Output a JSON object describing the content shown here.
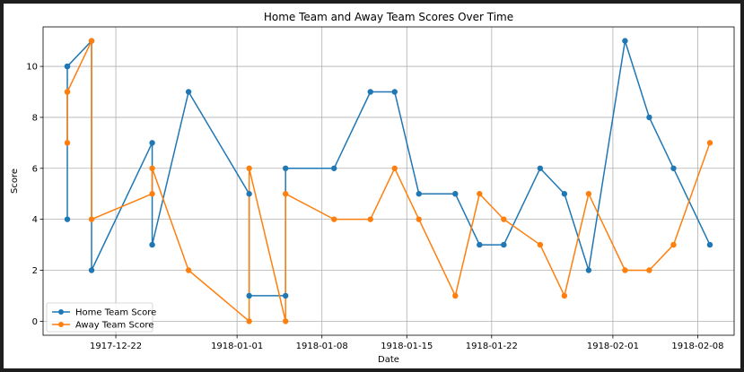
{
  "chart_data": {
    "type": "line",
    "title": "Home Team and Away Team Scores Over Time",
    "xlabel": "Date",
    "ylabel": "Score",
    "x_ticks": [
      "1917-12-22",
      "1918-01-01",
      "1918-01-08",
      "1918-01-15",
      "1918-01-22",
      "1918-02-01",
      "1918-02-08"
    ],
    "y_ticks": [
      0,
      2,
      4,
      6,
      8,
      10
    ],
    "xlim": [
      "1917-12-16",
      "1918-02-11"
    ],
    "ylim": [
      -0.55,
      11.55
    ],
    "grid": true,
    "legend_position": "lower-left",
    "x": [
      "1917-12-18",
      "1917-12-18",
      "1917-12-18",
      "1917-12-20",
      "1917-12-20",
      "1917-12-25",
      "1917-12-25",
      "1917-12-28",
      "1918-01-02",
      "1918-01-02",
      "1918-01-05",
      "1918-01-05",
      "1918-01-09",
      "1918-01-12",
      "1918-01-14",
      "1918-01-16",
      "1918-01-19",
      "1918-01-21",
      "1918-01-23",
      "1918-01-26",
      "1918-01-28",
      "1918-01-30",
      "1918-02-02",
      "1918-02-04",
      "1918-02-06",
      "1918-02-09"
    ],
    "series": [
      {
        "name": "Home Team Score",
        "color": "#1f77b4",
        "values": [
          10,
          4,
          10,
          11,
          2,
          7,
          3,
          9,
          5,
          1,
          1,
          6,
          6,
          9,
          9,
          5,
          5,
          3,
          3,
          6,
          5,
          2,
          11,
          8,
          6,
          3
        ]
      },
      {
        "name": "Away Team Score",
        "color": "#ff7f0e",
        "values": [
          9,
          7,
          9,
          11,
          4,
          5,
          6,
          2,
          0,
          6,
          0,
          5,
          4,
          4,
          6,
          4,
          1,
          5,
          4,
          3,
          1,
          5,
          2,
          2,
          3,
          7
        ]
      }
    ]
  }
}
